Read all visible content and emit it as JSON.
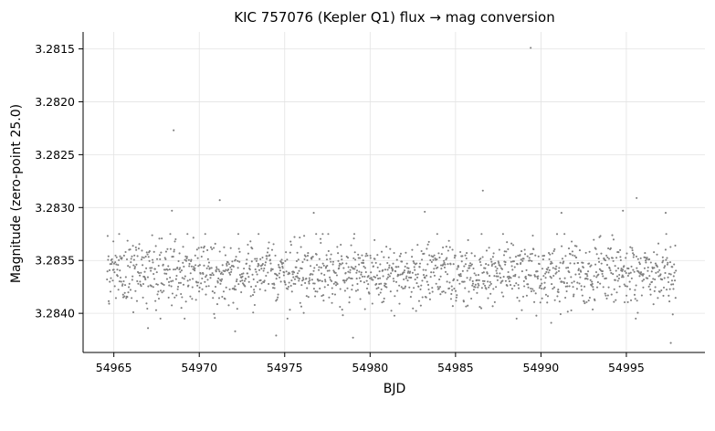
{
  "chart_data": {
    "type": "scatter",
    "title": "KIC 757076 (Kepler Q1) flux → mag conversion",
    "xlabel": "BJD",
    "ylabel": "Magnitude (zero-point 25.0)",
    "xlim": [
      54963.2,
      54999.6
    ],
    "ylim": [
      3.28134,
      3.28437
    ],
    "y_inverted": true,
    "x_ticks": [
      "54965",
      "54970",
      "54975",
      "54980",
      "54985",
      "54990",
      "54995"
    ],
    "y_ticks": [
      "3.2815",
      "3.2820",
      "3.2825",
      "3.2830",
      "3.2835",
      "3.2840"
    ],
    "grid": true,
    "marker_color": "#7f7f7f",
    "series": [
      {
        "x_start": 54964.6,
        "x_end": 54997.9,
        "n_points": 1600,
        "median": 3.28362,
        "scatter_std": 0.00015,
        "band_min": 3.28325,
        "band_max": 3.28405,
        "outliers": [
          {
            "x": 54968.5,
            "y": 3.28227
          },
          {
            "x": 54989.4,
            "y": 3.28149
          },
          {
            "x": 54986.6,
            "y": 3.28284
          },
          {
            "x": 54995.6,
            "y": 3.28291
          },
          {
            "x": 54971.2,
            "y": 3.28293
          },
          {
            "x": 54968.4,
            "y": 3.28303
          },
          {
            "x": 54976.7,
            "y": 3.28305
          },
          {
            "x": 54997.3,
            "y": 3.28305
          },
          {
            "x": 54994.8,
            "y": 3.28303
          },
          {
            "x": 54991.2,
            "y": 3.28305
          },
          {
            "x": 54983.2,
            "y": 3.28304
          },
          {
            "x": 54974.5,
            "y": 3.28421
          },
          {
            "x": 54979.0,
            "y": 3.28423
          },
          {
            "x": 54997.6,
            "y": 3.28428
          },
          {
            "x": 54967.0,
            "y": 3.28414
          },
          {
            "x": 54972.1,
            "y": 3.28417
          },
          {
            "x": 54990.6,
            "y": 3.28409
          }
        ]
      }
    ]
  }
}
